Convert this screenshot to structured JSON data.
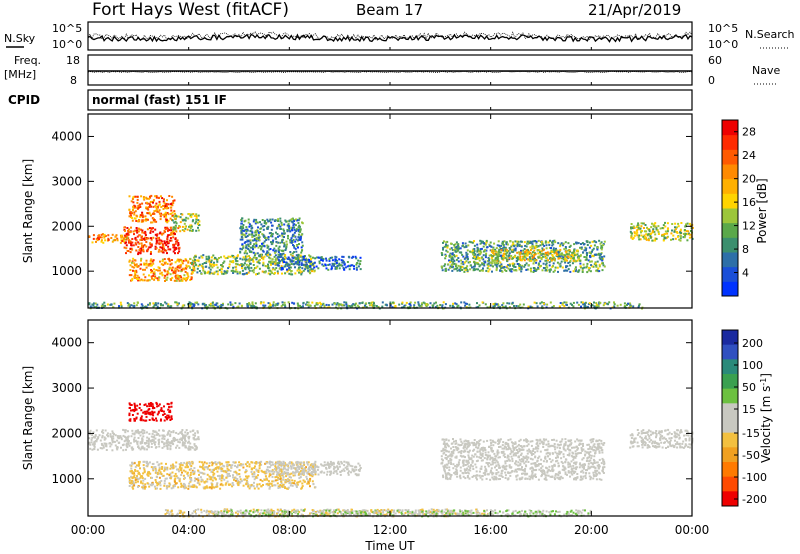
{
  "header": {
    "radar": "Fort Hays West (fitACF)",
    "beam": "Beam 17",
    "date": "21/Apr/2019"
  },
  "noise_panel": {
    "left_label": "N.Sky",
    "right_label": "N.Search",
    "tick_top": "10^5",
    "tick_bottom": "10^0"
  },
  "freq_panel": {
    "left_label_1": "Freq.",
    "left_label_2": "[MHz]",
    "left_ticks": [
      "18",
      "8"
    ],
    "right_label": "Nave",
    "right_ticks": [
      "60",
      "0"
    ]
  },
  "cpid": {
    "label": "CPID",
    "mode": "normal (fast) 151 IF"
  },
  "chart_data": [
    {
      "type": "heatmap",
      "name": "Power",
      "xlabel": "Time UT",
      "ylabel": "Slant Range [km]",
      "x_ticks": [
        "00:00",
        "04:00",
        "08:00",
        "12:00",
        "16:00",
        "20:00",
        "00:00"
      ],
      "x_range_hours": [
        0,
        24
      ],
      "y_ticks": [
        1000,
        2000,
        3000,
        4000
      ],
      "y_range_km": [
        180,
        4500
      ],
      "colorbar": {
        "label": "Power [dB]",
        "ticks": [
          4,
          8,
          12,
          16,
          20,
          24,
          28
        ],
        "range": [
          0,
          30
        ],
        "colors": [
          "#0033ff",
          "#1a4fd8",
          "#2d6fa8",
          "#3b8f6e",
          "#5aa84a",
          "#9cc63a",
          "#ffd400",
          "#ffb000",
          "#ff8a00",
          "#ff5a00",
          "#ff2a00",
          "#ee0000"
        ]
      },
      "scatter_regions": [
        {
          "t0": 0.0,
          "t1": 1.6,
          "r0": 1650,
          "r1": 1850,
          "value": 20
        },
        {
          "t0": 1.4,
          "t1": 3.6,
          "r0": 1400,
          "r1": 2000,
          "value": 26
        },
        {
          "t0": 1.6,
          "t1": 3.4,
          "r0": 2100,
          "r1": 2700,
          "value": 22
        },
        {
          "t0": 3.3,
          "t1": 4.4,
          "r0": 1900,
          "r1": 2300,
          "value": 14
        },
        {
          "t0": 1.6,
          "t1": 4.2,
          "r0": 800,
          "r1": 1300,
          "value": 20
        },
        {
          "t0": 4.0,
          "t1": 9.0,
          "r0": 950,
          "r1": 1400,
          "value": 12
        },
        {
          "t0": 7.5,
          "t1": 10.8,
          "r0": 1050,
          "r1": 1350,
          "value": 6
        },
        {
          "t0": 6.0,
          "t1": 8.5,
          "r0": 1400,
          "r1": 2200,
          "value": 8
        },
        {
          "t0": 14.0,
          "t1": 20.5,
          "r0": 1000,
          "r1": 1700,
          "value": 10
        },
        {
          "t0": 16.0,
          "t1": 19.5,
          "r0": 1250,
          "r1": 1500,
          "value": 16
        },
        {
          "t0": 21.5,
          "t1": 24.0,
          "r0": 1700,
          "r1": 2100,
          "value": 14
        },
        {
          "t0": 0.0,
          "t1": 22.0,
          "r0": 190,
          "r1": 330,
          "value": 10
        }
      ]
    },
    {
      "type": "heatmap",
      "name": "Velocity",
      "xlabel": "Time UT",
      "ylabel": "Slant Range [km]",
      "x_ticks": [
        "00:00",
        "04:00",
        "08:00",
        "12:00",
        "16:00",
        "20:00",
        "00:00"
      ],
      "x_range_hours": [
        0,
        24
      ],
      "y_ticks": [
        1000,
        2000,
        3000,
        4000
      ],
      "y_range_km": [
        180,
        4500
      ],
      "colorbar": {
        "label": "Velocity [m s^-1]",
        "ticks": [
          200,
          100,
          50,
          15,
          -15,
          -50,
          -100,
          -200
        ],
        "colors": [
          "#1a2aa0",
          "#3050c0",
          "#2a8a7a",
          "#3aa050",
          "#6cc040",
          "#c8c8c0",
          "#c8c8c0",
          "#f2c040",
          "#f0a020",
          "#ff7a00",
          "#ff4a00",
          "#ee0000"
        ]
      },
      "scatter_regions": [
        {
          "t0": 0.0,
          "t1": 4.4,
          "r0": 1650,
          "r1": 2100,
          "value": 0
        },
        {
          "t0": 1.6,
          "t1": 3.3,
          "r0": 2300,
          "r1": 2700,
          "value": -250
        },
        {
          "t0": 1.6,
          "t1": 9.0,
          "r0": 800,
          "r1": 1400,
          "value": -40
        },
        {
          "t0": 7.0,
          "t1": 10.8,
          "r0": 1100,
          "r1": 1400,
          "value": 0
        },
        {
          "t0": 14.0,
          "t1": 20.5,
          "r0": 1000,
          "r1": 1900,
          "value": 0
        },
        {
          "t0": 21.5,
          "t1": 24.0,
          "r0": 1700,
          "r1": 2100,
          "value": 0
        },
        {
          "t0": 3.0,
          "t1": 16.0,
          "r0": 190,
          "r1": 350,
          "value": -30
        },
        {
          "t0": 5.0,
          "t1": 20.0,
          "r0": 190,
          "r1": 330,
          "value": 30
        }
      ]
    }
  ]
}
